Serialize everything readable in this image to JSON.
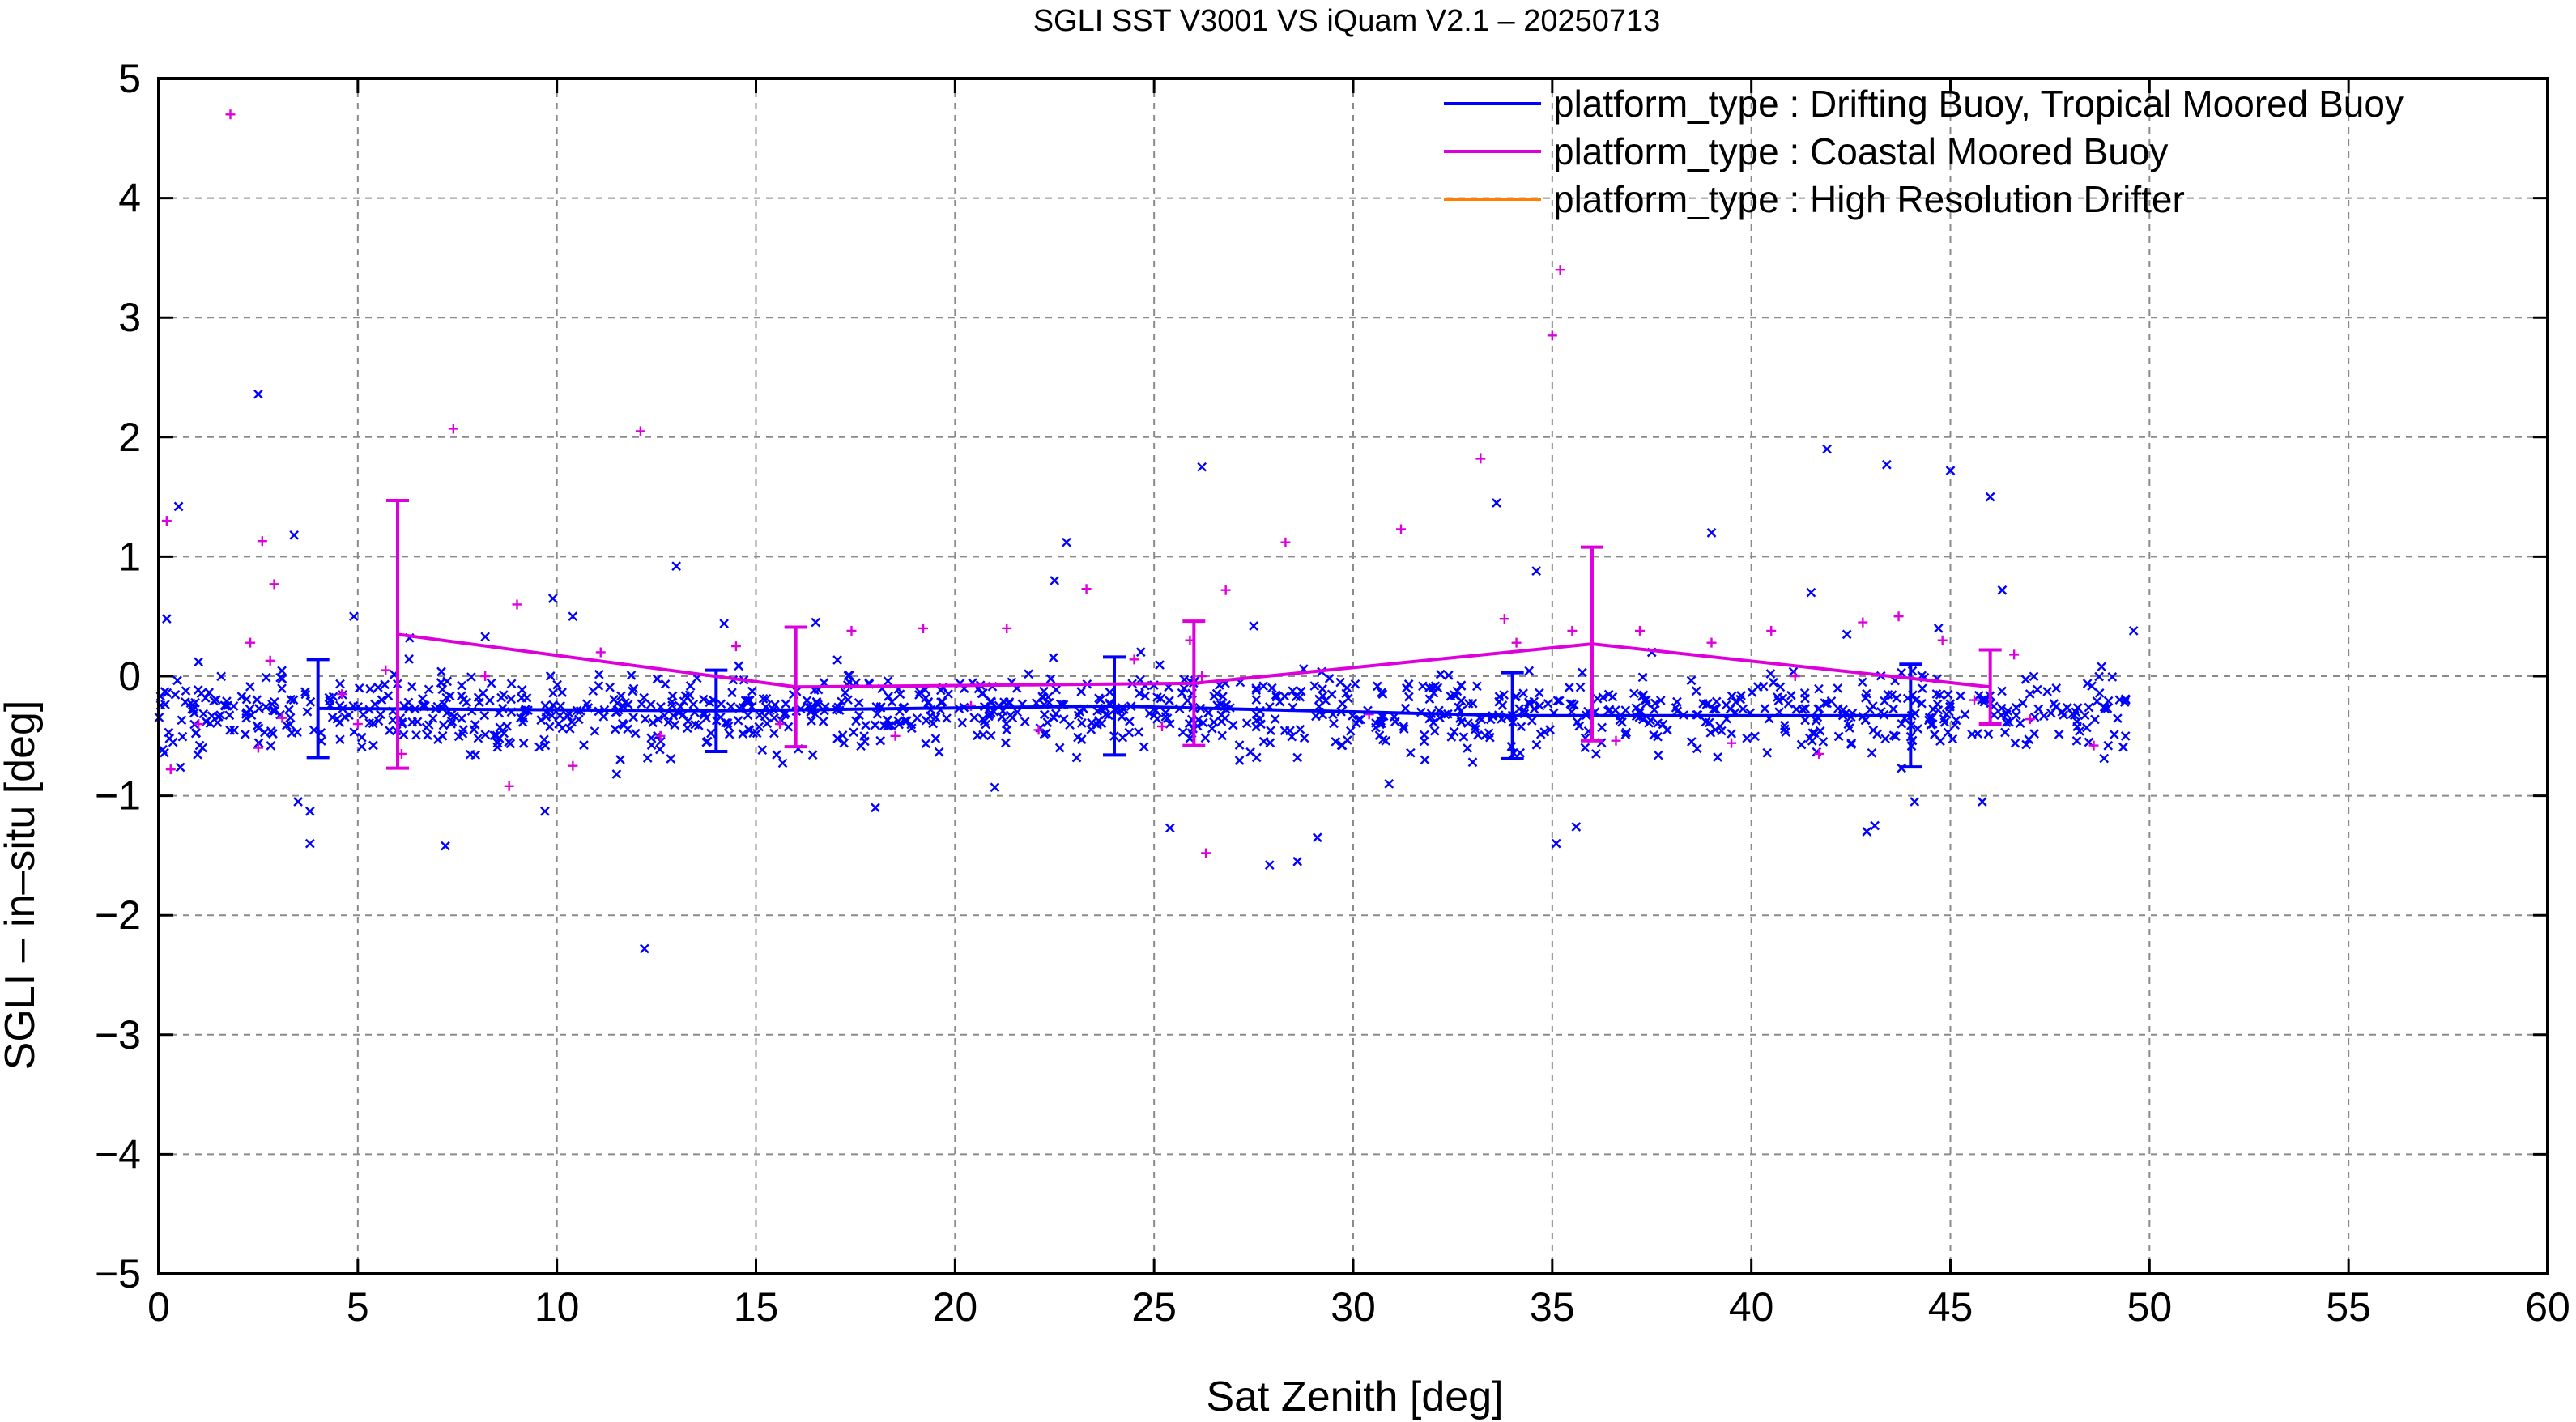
{
  "chart_data": {
    "type": "scatter",
    "title": "SGLI SST V3001 VS iQuam V2.1  – 20250713",
    "xlabel": "Sat Zenith [deg]",
    "ylabel": "SGLI – in–situ [deg]",
    "xlim": [
      0,
      60
    ],
    "ylim": [
      -5,
      5
    ],
    "x_ticks": [
      "0",
      "5",
      "10",
      "15",
      "20",
      "25",
      "30",
      "35",
      "40",
      "45",
      "50",
      "55",
      "60"
    ],
    "y_ticks": [
      "−5",
      "−4",
      "−3",
      "−2",
      "−1",
      "0",
      "1",
      "2",
      "3",
      "4",
      "5"
    ],
    "grid": true,
    "legend_position": "top-right",
    "colors": {
      "drifting": "#0000ff",
      "coastal": "#dd00dd",
      "hrd": "#ff8000"
    },
    "series": [
      {
        "name": "platform_type : Drifting Buoy, Tropical Moored Buoy",
        "marker": "x",
        "color": "#0000ff",
        "mean_line": {
          "x": [
            4,
            14,
            24,
            34,
            44
          ],
          "y": [
            -0.27,
            -0.29,
            -0.25,
            -0.33,
            -0.33
          ],
          "err": [
            0.41,
            0.34,
            0.41,
            0.36,
            0.43
          ]
        },
        "outliers": [
          [
            0.2,
            0.48
          ],
          [
            0.5,
            1.42
          ],
          [
            1.0,
            0.12
          ],
          [
            1.1,
            -0.6
          ],
          [
            2.2,
            -0.35
          ],
          [
            2.5,
            2.36
          ],
          [
            3.4,
            1.18
          ],
          [
            3.5,
            -1.05
          ],
          [
            3.8,
            -1.13
          ],
          [
            3.8,
            -1.4
          ],
          [
            4.9,
            0.5
          ],
          [
            7.2,
            -1.42
          ],
          [
            9.7,
            -1.13
          ],
          [
            9.9,
            0.65
          ],
          [
            10.4,
            0.5
          ],
          [
            12.2,
            -2.28
          ],
          [
            13.0,
            0.92
          ],
          [
            14.2,
            0.44
          ],
          [
            18.0,
            -1.1
          ],
          [
            22.5,
            0.8
          ],
          [
            22.8,
            1.12
          ],
          [
            25.4,
            -1.27
          ],
          [
            26.2,
            1.75
          ],
          [
            27.9,
            -1.58
          ],
          [
            28.6,
            -1.55
          ],
          [
            29.1,
            -1.35
          ],
          [
            30.9,
            -0.9
          ],
          [
            31.8,
            -0.7
          ],
          [
            33.6,
            1.45
          ],
          [
            34.6,
            0.88
          ],
          [
            35.1,
            -1.4
          ],
          [
            35.6,
            -1.26
          ],
          [
            36.1,
            -0.65
          ],
          [
            39.0,
            1.2
          ],
          [
            40.7,
            -0.3
          ],
          [
            41.5,
            0.7
          ],
          [
            41.9,
            1.9
          ],
          [
            42.9,
            -1.3
          ],
          [
            43.1,
            -1.25
          ],
          [
            43.4,
            1.77
          ],
          [
            44.1,
            -1.05
          ],
          [
            44.7,
            0.4
          ],
          [
            45.0,
            1.72
          ],
          [
            45.8,
            -1.05
          ],
          [
            46.0,
            1.5
          ],
          [
            46.3,
            0.72
          ],
          [
            47.6,
            -0.23
          ],
          [
            49.4,
            -0.2
          ],
          [
            49.6,
            0.38
          ],
          [
            42.4,
            0.35
          ],
          [
            37.5,
            0.2
          ],
          [
            33.0,
            -0.72
          ],
          [
            27.5,
            0.42
          ],
          [
            21.0,
            -0.93
          ],
          [
            16.5,
            0.45
          ],
          [
            11.5,
            -0.82
          ],
          [
            8.2,
            0.33
          ],
          [
            6.3,
            0.32
          ]
        ]
      },
      {
        "name": "platform_type : Coastal Moored Buoy",
        "marker": "+",
        "color": "#dd00dd",
        "mean_line": {
          "x": [
            6,
            16,
            26,
            36,
            46
          ],
          "y": [
            0.35,
            -0.09,
            -0.06,
            0.27,
            -0.09
          ],
          "err": [
            1.12,
            0.5,
            0.52,
            0.81,
            0.31
          ]
        },
        "points": [
          [
            0.2,
            1.3
          ],
          [
            0.3,
            -0.78
          ],
          [
            1.0,
            -0.4
          ],
          [
            1.8,
            4.7
          ],
          [
            2.3,
            0.28
          ],
          [
            2.5,
            -0.6
          ],
          [
            2.6,
            1.13
          ],
          [
            2.8,
            0.13
          ],
          [
            2.9,
            0.77
          ],
          [
            3.1,
            -0.35
          ],
          [
            4.6,
            -0.15
          ],
          [
            5.0,
            -0.4
          ],
          [
            5.7,
            0.05
          ],
          [
            6.1,
            -0.65
          ],
          [
            7.4,
            2.07
          ],
          [
            8.2,
            0.0
          ],
          [
            8.8,
            -0.92
          ],
          [
            9.0,
            0.6
          ],
          [
            10.4,
            -0.75
          ],
          [
            11.1,
            0.2
          ],
          [
            12.1,
            2.05
          ],
          [
            12.6,
            -0.5
          ],
          [
            14.5,
            0.25
          ],
          [
            15.6,
            -0.4
          ],
          [
            17.4,
            0.38
          ],
          [
            18.5,
            -0.5
          ],
          [
            19.2,
            0.4
          ],
          [
            20.4,
            -0.25
          ],
          [
            21.3,
            0.4
          ],
          [
            22.1,
            -0.45
          ],
          [
            23.3,
            0.73
          ],
          [
            24.5,
            0.14
          ],
          [
            25.2,
            -0.42
          ],
          [
            25.9,
            0.3
          ],
          [
            26.2,
            0.0
          ],
          [
            26.3,
            -1.48
          ],
          [
            26.8,
            0.72
          ],
          [
            28.3,
            1.12
          ],
          [
            30.4,
            -0.32
          ],
          [
            31.2,
            1.23
          ],
          [
            33.2,
            1.82
          ],
          [
            33.8,
            0.48
          ],
          [
            34.1,
            0.28
          ],
          [
            35.0,
            2.85
          ],
          [
            35.2,
            3.4
          ],
          [
            35.5,
            0.38
          ],
          [
            36.6,
            -0.54
          ],
          [
            37.2,
            0.38
          ],
          [
            39.0,
            0.28
          ],
          [
            39.5,
            -0.56
          ],
          [
            40.5,
            0.38
          ],
          [
            41.1,
            0.0
          ],
          [
            41.7,
            -0.65
          ],
          [
            42.8,
            0.45
          ],
          [
            43.7,
            0.5
          ],
          [
            44.8,
            0.3
          ],
          [
            45.6,
            -0.2
          ],
          [
            46.6,
            0.18
          ],
          [
            47.0,
            -0.36
          ],
          [
            48.6,
            -0.58
          ]
        ]
      },
      {
        "name": "platform_type : High Resolution Drifter",
        "marker": "line",
        "color": "#ff8000"
      }
    ],
    "cloud": {
      "series": "platform_type : Drifting Buoy, Tropical Moored Buoy",
      "x_range": [
        0,
        49.5
      ],
      "center": -0.3,
      "spread": 0.3,
      "approx_count": 1100
    }
  }
}
